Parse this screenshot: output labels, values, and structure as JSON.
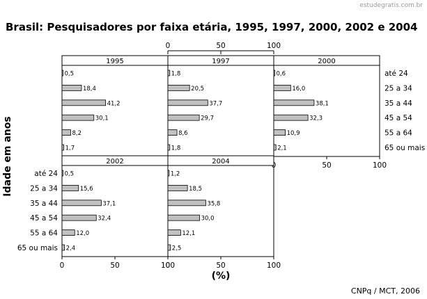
{
  "watermark": "estudegratis.com.br",
  "source": "CNPq / MCT, 2006",
  "chart_data": {
    "type": "bar",
    "orientation": "horizontal",
    "title": "Brasil: Pesquisadores por faixa etária, 1995, 1997, 2000, 2002 e 2004",
    "ylabel": "Idade em anos",
    "xlabel": "(%)",
    "xlim": [
      0,
      100
    ],
    "xticks": [
      0,
      50,
      100
    ],
    "categories": [
      "até 24",
      "25 a 34",
      "35 a 44",
      "45 a 54",
      "55 a 64",
      "65 ou mais"
    ],
    "series": [
      {
        "name": "1995",
        "values": [
          0.5,
          18.4,
          41.2,
          30.1,
          8.2,
          1.7
        ]
      },
      {
        "name": "1997",
        "values": [
          1.8,
          20.5,
          37.7,
          29.7,
          8.6,
          1.8
        ]
      },
      {
        "name": "2000",
        "values": [
          0.6,
          16.0,
          38.1,
          32.3,
          10.9,
          2.1
        ]
      },
      {
        "name": "2002",
        "values": [
          0.5,
          15.6,
          37.1,
          32.4,
          12.0,
          2.4
        ]
      },
      {
        "name": "2004",
        "values": [
          1.2,
          18.5,
          35.8,
          30.0,
          12.1,
          2.5
        ]
      }
    ],
    "bar_color": "#c0c0c0",
    "grid": false
  }
}
